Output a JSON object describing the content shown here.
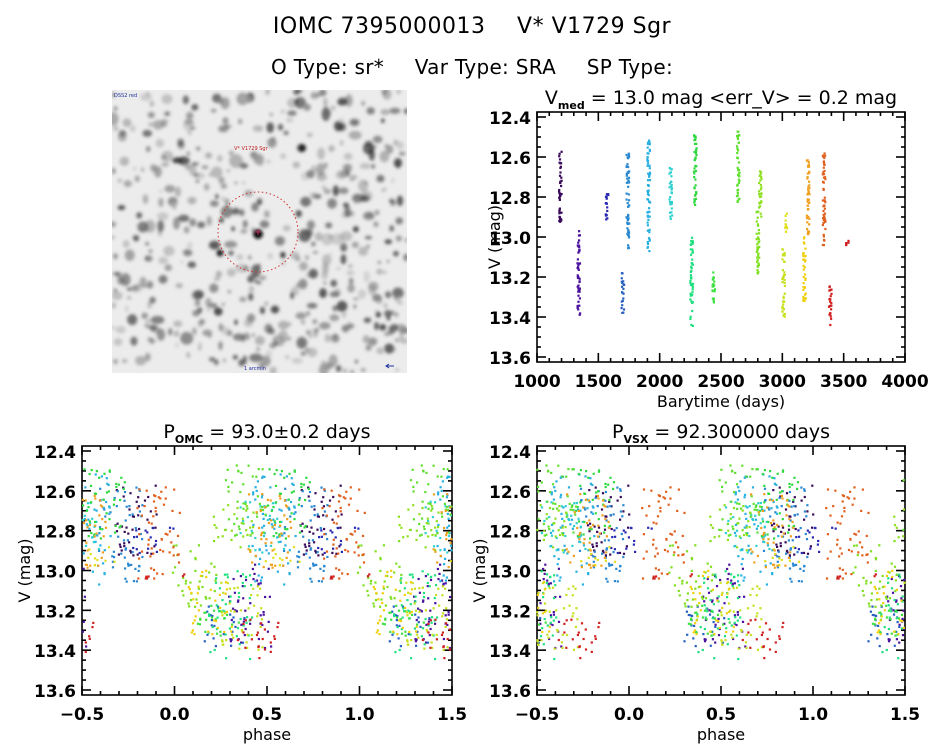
{
  "header": {
    "id_label": "IOMC 7395000013",
    "name_label": "V* V1729 Sgr",
    "otype": "O Type: sr*",
    "vartype": "Var Type: SRA",
    "sptype": "SP Type:"
  },
  "image_panel": {
    "description": "Sky image cutout (greyscale) with red dotted circle around target",
    "label_top_left": "DSS2 red",
    "label_target": "V* V1729 Sgr",
    "label_bottom": "1 arcmin",
    "compass": "N/E arrows",
    "circle_color": "#d03030"
  },
  "chart_data": [
    {
      "type": "scatter",
      "id": "light-curve",
      "title_main": "V",
      "title_sub": "med",
      "title_rest": " = 13.0 mag <err_V> = 0.2 mag",
      "xlabel": "Barytime (days)",
      "ylabel": "V (mag)",
      "xlim": [
        1000,
        4000
      ],
      "ylim": [
        13.6,
        12.4
      ],
      "y_inverted": true,
      "xticks": [
        "1000",
        "1500",
        "2000",
        "2500",
        "3000",
        "3500",
        "4000"
      ],
      "yticks": [
        "12.4",
        "12.6",
        "12.8",
        "13.0",
        "13.2",
        "13.4",
        "13.6"
      ],
      "grid": false,
      "color_encodes": "time (rainbow: violet early -> red late)",
      "clusters": [
        {
          "t": 1190,
          "vmin": 12.56,
          "vmax": 12.93,
          "color": "#3a0a5a"
        },
        {
          "t": 1340,
          "vmin": 12.97,
          "vmax": 13.41,
          "color": "#4b12a0"
        },
        {
          "t": 1570,
          "vmin": 12.77,
          "vmax": 12.92,
          "color": "#2a2ab0"
        },
        {
          "t": 1700,
          "vmin": 13.18,
          "vmax": 13.38,
          "color": "#2860c0"
        },
        {
          "t": 1740,
          "vmin": 12.57,
          "vmax": 13.08,
          "color": "#2a88d0"
        },
        {
          "t": 1910,
          "vmin": 12.51,
          "vmax": 13.07,
          "color": "#28b0e0"
        },
        {
          "t": 2090,
          "vmin": 12.62,
          "vmax": 12.91,
          "color": "#30d0d0"
        },
        {
          "t": 2260,
          "vmin": 13.0,
          "vmax": 13.45,
          "color": "#20e080"
        },
        {
          "t": 2290,
          "vmin": 12.49,
          "vmax": 12.86,
          "color": "#30d840"
        },
        {
          "t": 2440,
          "vmin": 13.16,
          "vmax": 13.34,
          "color": "#40e040"
        },
        {
          "t": 2640,
          "vmin": 12.46,
          "vmax": 12.83,
          "color": "#60e030"
        },
        {
          "t": 2800,
          "vmin": 12.85,
          "vmax": 13.2,
          "color": "#80e020"
        },
        {
          "t": 2820,
          "vmin": 12.66,
          "vmax": 12.9,
          "color": "#90e020"
        },
        {
          "t": 3010,
          "vmin": 13.06,
          "vmax": 13.42,
          "color": "#c8e020"
        },
        {
          "t": 3030,
          "vmin": 12.88,
          "vmax": 12.98,
          "color": "#e0e020"
        },
        {
          "t": 3180,
          "vmin": 13.0,
          "vmax": 13.32,
          "color": "#f0d010"
        },
        {
          "t": 3210,
          "vmin": 12.6,
          "vmax": 13.0,
          "color": "#f0a020"
        },
        {
          "t": 3340,
          "vmin": 12.58,
          "vmax": 13.04,
          "color": "#e06020"
        },
        {
          "t": 3390,
          "vmin": 13.24,
          "vmax": 13.44,
          "color": "#d02020"
        },
        {
          "t": 3530,
          "vmin": 13.01,
          "vmax": 13.04,
          "color": "#d02020"
        }
      ]
    },
    {
      "type": "scatter",
      "id": "phase-omc",
      "title_main": "P",
      "title_sub": "OMC",
      "title_rest": " = 93.0±0.2 days",
      "period_days": 93.0,
      "xlabel": "phase",
      "ylabel": "V (mag)",
      "xlim": [
        -0.5,
        1.5
      ],
      "ylim": [
        13.6,
        12.4
      ],
      "y_inverted": true,
      "xticks": [
        "-0.5",
        "0.0",
        "0.5",
        "1.0",
        "1.5"
      ],
      "yticks": [
        "12.4",
        "12.6",
        "12.8",
        "13.0",
        "13.2",
        "13.4",
        "13.6"
      ],
      "grid": false
    },
    {
      "type": "scatter",
      "id": "phase-vsx",
      "title_main": "P",
      "title_sub": "VSX",
      "title_rest": " = 92.300000 days",
      "period_days": 92.3,
      "xlabel": "phase",
      "ylabel": "V (mag)",
      "xlim": [
        -0.5,
        1.5
      ],
      "ylim": [
        13.6,
        12.4
      ],
      "y_inverted": true,
      "xticks": [
        "-0.5",
        "0.0",
        "0.5",
        "1.0",
        "1.5"
      ],
      "yticks": [
        "12.4",
        "12.6",
        "12.8",
        "13.0",
        "13.2",
        "13.4",
        "13.6"
      ],
      "grid": false
    }
  ]
}
